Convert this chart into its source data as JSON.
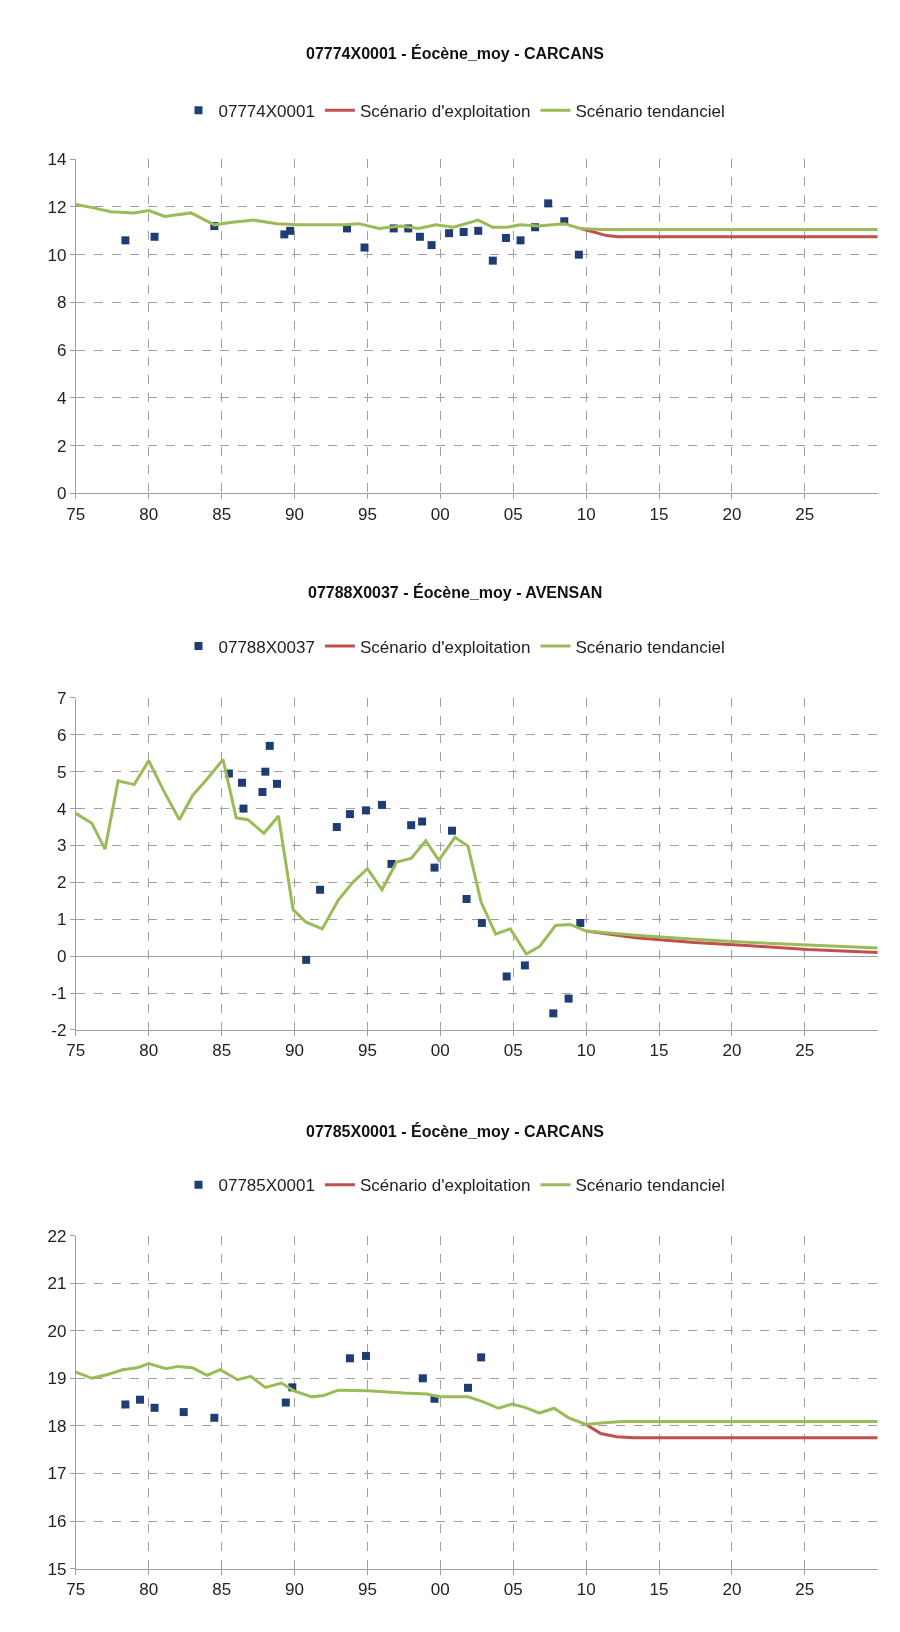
{
  "chart_data": [
    {
      "type": "line",
      "title": "07774X0001 - Éocène_moy - CARCANS",
      "xlim": [
        1975,
        2030
      ],
      "ylim": [
        0,
        14
      ],
      "yticks": [
        0,
        2,
        4,
        6,
        8,
        10,
        12,
        14
      ],
      "xticks": [
        {
          "value": 1975,
          "label": "75"
        },
        {
          "value": 1980,
          "label": "80"
        },
        {
          "value": 1985,
          "label": "85"
        },
        {
          "value": 1990,
          "label": "90"
        },
        {
          "value": 1995,
          "label": "95"
        },
        {
          "value": 2000,
          "label": "00"
        },
        {
          "value": 2005,
          "label": "05"
        },
        {
          "value": 2010,
          "label": "10"
        },
        {
          "value": 2015,
          "label": "15"
        },
        {
          "value": 2020,
          "label": "20"
        },
        {
          "value": 2025,
          "label": "25"
        }
      ],
      "grid": true,
      "legend": "top",
      "series": [
        {
          "name": "07774X0001",
          "type": "scatter",
          "marker": "square",
          "color": "#1f3d73",
          "x": [
            1978.4,
            1980.4,
            1984.5,
            1989.3,
            1989.7,
            1993.6,
            1994.8,
            1996.8,
            1997.8,
            1998.6,
            1999.4,
            2000.6,
            2001.6,
            2002.6,
            2003.6,
            2004.5,
            2005.5,
            2006.5,
            2007.4,
            2008.5,
            2009.5
          ],
          "values": [
            10.6,
            10.75,
            11.2,
            10.85,
            11.0,
            11.1,
            10.3,
            11.1,
            11.1,
            10.75,
            10.4,
            10.9,
            10.95,
            11.0,
            9.75,
            10.7,
            10.6,
            11.15,
            12.15,
            11.4,
            10.0
          ]
        },
        {
          "name": "Scénario d'exploitation",
          "color": "#c0504d",
          "x": [
            2009.6,
            2010.2,
            2011.4,
            2012.2,
            2030
          ],
          "values": [
            11.1,
            11.0,
            10.8,
            10.75,
            10.75
          ]
        },
        {
          "name": "Scénario tendanciel",
          "color": "#9bbb59",
          "x": [
            1975,
            1976.3,
            1977.4,
            1979,
            1980,
            1981.1,
            1982.9,
            1984.5,
            1985.6,
            1987.2,
            1988.8,
            1990.3,
            1993.4,
            1994.4,
            1995.8,
            1997.3,
            1998.5,
            1999.7,
            2000.9,
            2002.6,
            2003.6,
            2004.6,
            2005.5,
            2006.7,
            2008.5,
            2009.6,
            2011,
            2030
          ],
          "values": [
            12.1,
            11.95,
            11.8,
            11.75,
            11.85,
            11.6,
            11.75,
            11.25,
            11.35,
            11.45,
            11.3,
            11.25,
            11.25,
            11.3,
            11.1,
            11.2,
            11.1,
            11.25,
            11.15,
            11.45,
            11.15,
            11.15,
            11.25,
            11.2,
            11.3,
            11.1,
            11.05,
            11.05
          ]
        }
      ]
    },
    {
      "type": "line",
      "title": "07788X0037 - Éocène_moy - AVENSAN",
      "xlim": [
        1975,
        2030
      ],
      "ylim": [
        -2,
        7
      ],
      "yticks": [
        -2,
        -1,
        0,
        1,
        2,
        3,
        4,
        5,
        6,
        7
      ],
      "xticks": [
        {
          "value": 1975,
          "label": "75"
        },
        {
          "value": 1980,
          "label": "80"
        },
        {
          "value": 1985,
          "label": "85"
        },
        {
          "value": 1990,
          "label": "90"
        },
        {
          "value": 1995,
          "label": "95"
        },
        {
          "value": 2000,
          "label": "00"
        },
        {
          "value": 2005,
          "label": "05"
        },
        {
          "value": 2010,
          "label": "10"
        },
        {
          "value": 2015,
          "label": "15"
        },
        {
          "value": 2020,
          "label": "20"
        },
        {
          "value": 2025,
          "label": "25"
        }
      ],
      "grid": true,
      "legend": "top",
      "series": [
        {
          "name": "07788X0037",
          "type": "scatter",
          "marker": "square",
          "color": "#1f3d73",
          "x": [
            1985.5,
            1986.4,
            1986.5,
            1987.8,
            1988.0,
            1988.3,
            1988.8,
            1990.8,
            1991.75,
            1992.9,
            1993.8,
            1994.9,
            1996.0,
            1996.65,
            1998.0,
            1998.75,
            1999.6,
            2000.8,
            2001.8,
            2002.85,
            2004.55,
            2005.8,
            2007.75,
            2008.8,
            2009.6
          ],
          "values": [
            4.95,
            4.7,
            4.0,
            4.45,
            5.0,
            5.7,
            4.67,
            -0.1,
            1.8,
            3.5,
            3.85,
            3.95,
            4.1,
            2.5,
            3.55,
            3.65,
            2.4,
            3.4,
            1.55,
            0.9,
            -0.55,
            -0.25,
            -1.55,
            -1.15,
            0.9
          ]
        },
        {
          "name": "Scénario d'exploitation",
          "color": "#c0504d",
          "x": [
            2010,
            2013.4,
            2017.4,
            2021.3,
            2025.2,
            2030
          ],
          "values": [
            0.68,
            0.5,
            0.37,
            0.28,
            0.18,
            0.1
          ]
        },
        {
          "name": "Scénario tendanciel",
          "color": "#9bbb59",
          "x": [
            1975,
            1976.1,
            1977,
            1977.9,
            1979,
            1980,
            1981,
            1982.1,
            1983,
            1984,
            1985.1,
            1986,
            1986.8,
            1987.9,
            1988.9,
            1989.9,
            1990.8,
            1991.9,
            1993,
            1994,
            1995,
            1996,
            1997,
            1998,
            1999,
            1999.9,
            2001,
            2001.9,
            2002.8,
            2003.8,
            2004.8,
            2005.9,
            2006.8,
            2007.9,
            2008.9,
            2010,
            2013.4,
            2017.4,
            2021.3,
            2025.2,
            2030
          ],
          "values": [
            3.87,
            3.6,
            2.9,
            4.75,
            4.65,
            5.3,
            4.5,
            3.7,
            4.35,
            4.8,
            5.33,
            3.75,
            3.7,
            3.33,
            3.8,
            1.26,
            0.92,
            0.74,
            1.52,
            2.0,
            2.37,
            1.8,
            2.55,
            2.65,
            3.13,
            2.6,
            3.22,
            2.98,
            1.46,
            0.6,
            0.74,
            0.06,
            0.26,
            0.83,
            0.86,
            0.68,
            0.57,
            0.46,
            0.37,
            0.3,
            0.22
          ]
        }
      ]
    },
    {
      "type": "line",
      "title": "07785X0001 - Éocène_moy - CARCANS",
      "xlim": [
        1975,
        2030
      ],
      "ylim": [
        15,
        22
      ],
      "yticks": [
        15,
        16,
        17,
        18,
        19,
        20,
        21,
        22
      ],
      "xticks": [
        {
          "value": 1975,
          "label": "75"
        },
        {
          "value": 1980,
          "label": "80"
        },
        {
          "value": 1985,
          "label": "85"
        },
        {
          "value": 1990,
          "label": "90"
        },
        {
          "value": 1995,
          "label": "95"
        },
        {
          "value": 2000,
          "label": "00"
        },
        {
          "value": 2005,
          "label": "05"
        },
        {
          "value": 2010,
          "label": "10"
        },
        {
          "value": 2015,
          "label": "15"
        },
        {
          "value": 2020,
          "label": "20"
        },
        {
          "value": 2025,
          "label": "25"
        }
      ],
      "grid": true,
      "legend": "top",
      "series": [
        {
          "name": "07785X0001",
          "type": "scatter",
          "marker": "square",
          "color": "#1f3d73",
          "x": [
            1978.4,
            1979.4,
            1980.4,
            1982.4,
            1984.5,
            1989.4,
            1989.85,
            1993.8,
            1994.9,
            1998.8,
            1999.6,
            2001.9,
            2002.8
          ],
          "values": [
            18.45,
            18.55,
            18.38,
            18.29,
            18.17,
            18.49,
            18.81,
            19.42,
            19.47,
            19.0,
            18.57,
            18.8,
            19.44
          ]
        },
        {
          "name": "Scénario d'exploitation",
          "color": "#c0504d",
          "x": [
            2010,
            2011,
            2012.1,
            2013.3,
            2030
          ],
          "values": [
            18.03,
            17.84,
            17.77,
            17.75,
            17.75
          ]
        },
        {
          "name": "Scénario tendanciel",
          "color": "#9bbb59",
          "x": [
            1975,
            1976.1,
            1977.2,
            1978.2,
            1979.2,
            1980,
            1981.2,
            1982,
            1983,
            1984,
            1984.9,
            1986.1,
            1987,
            1988,
            1989.1,
            1990,
            1991.2,
            1992,
            1993,
            1995,
            1997.5,
            1999.1,
            1999.9,
            2001.9,
            2002.9,
            2004,
            2004.9,
            2005.8,
            2006.8,
            2007.8,
            2008.8,
            2010,
            2011,
            2012.5,
            2030
          ],
          "values": [
            19.13,
            19.0,
            19.08,
            19.18,
            19.22,
            19.31,
            19.2,
            19.25,
            19.22,
            19.06,
            19.18,
            18.97,
            19.04,
            18.81,
            18.9,
            18.73,
            18.61,
            18.64,
            18.75,
            18.74,
            18.69,
            18.67,
            18.61,
            18.61,
            18.51,
            18.37,
            18.46,
            18.39,
            18.27,
            18.37,
            18.17,
            18.03,
            18.06,
            18.09,
            18.09
          ]
        }
      ]
    }
  ]
}
